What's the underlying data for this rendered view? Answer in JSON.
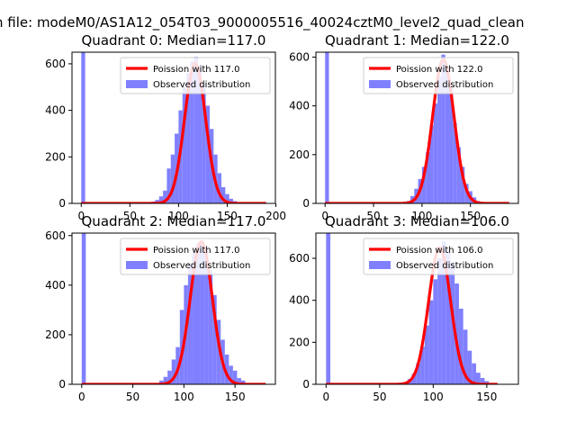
{
  "figure": {
    "suptitle": "n file: modeM0/AS1A12_054T03_9000005516_40024cztM0_level2_quad_clean"
  },
  "colors": {
    "hist": "#8080ff",
    "poisson": "#ff0000",
    "axis": "#000000",
    "legend_border": "#cccccc"
  },
  "chart_data": [
    {
      "type": "bar",
      "title": "Quadrant 0: Median=117.0",
      "xlim": [
        -9.5,
        199.5
      ],
      "ylim": [
        0,
        650
      ],
      "xticks": [
        0,
        50,
        100,
        150,
        200
      ],
      "xticklabels": [
        "0",
        "50",
        "100",
        "150",
        "200"
      ],
      "yticks": [
        0,
        200,
        400,
        600
      ],
      "yticklabels": [
        "0",
        "200",
        "400",
        "600"
      ],
      "legend": {
        "position": "upper right",
        "line_label": "Poission with 117.0",
        "hist_label": "Observed distribution"
      },
      "mean": 117.0,
      "peak": 602,
      "poisson_xrange": [
        0,
        190
      ],
      "zero_bin": {
        "x": 0,
        "height": 650
      },
      "bin_width": 4,
      "bins": [
        [
          72,
          8
        ],
        [
          76,
          15
        ],
        [
          80,
          30
        ],
        [
          84,
          55
        ],
        [
          88,
          150
        ],
        [
          92,
          210
        ],
        [
          96,
          300
        ],
        [
          100,
          400
        ],
        [
          104,
          500
        ],
        [
          108,
          560
        ],
        [
          112,
          610
        ],
        [
          116,
          630
        ],
        [
          120,
          590
        ],
        [
          124,
          520
        ],
        [
          128,
          420
        ],
        [
          132,
          320
        ],
        [
          136,
          210
        ],
        [
          140,
          130
        ],
        [
          144,
          70
        ],
        [
          148,
          40
        ],
        [
          152,
          20
        ],
        [
          156,
          10
        ],
        [
          160,
          5
        ]
      ]
    },
    {
      "type": "bar",
      "title": "Quadrant 1: Median=122.0",
      "xlim": [
        -9.5,
        199.5
      ],
      "ylim": [
        0,
        620
      ],
      "xticks": [
        0,
        50,
        100,
        150
      ],
      "xticklabels": [
        "0",
        "50",
        "100",
        "150"
      ],
      "yticks": [
        0,
        200,
        400,
        600
      ],
      "yticklabels": [
        "0",
        "200",
        "400",
        "600"
      ],
      "legend": {
        "position": "upper right",
        "line_label": "Poission with 122.0",
        "hist_label": "Observed distribution"
      },
      "mean": 122.0,
      "peak": 590,
      "poisson_xrange": [
        0,
        190
      ],
      "zero_bin": {
        "x": 0,
        "height": 620
      },
      "bin_width": 4,
      "bins": [
        [
          80,
          5
        ],
        [
          84,
          10
        ],
        [
          88,
          30
        ],
        [
          92,
          60
        ],
        [
          96,
          100
        ],
        [
          100,
          150
        ],
        [
          104,
          210
        ],
        [
          108,
          320
        ],
        [
          112,
          410
        ],
        [
          116,
          520
        ],
        [
          120,
          610
        ],
        [
          124,
          550
        ],
        [
          128,
          460
        ],
        [
          132,
          330
        ],
        [
          136,
          230
        ],
        [
          140,
          150
        ],
        [
          144,
          80
        ],
        [
          148,
          50
        ],
        [
          152,
          25
        ],
        [
          156,
          10
        ],
        [
          160,
          5
        ]
      ]
    },
    {
      "type": "bar",
      "title": "Quadrant 2: Median=117.0",
      "xlim": [
        -9.5,
        189.5
      ],
      "ylim": [
        0,
        610
      ],
      "xticks": [
        0,
        50,
        100,
        150
      ],
      "xticklabels": [
        "0",
        "50",
        "100",
        "150"
      ],
      "yticks": [
        0,
        200,
        400,
        600
      ],
      "yticklabels": [
        "0",
        "200",
        "400",
        "600"
      ],
      "legend": {
        "position": "upper right",
        "line_label": "Poission with 117.0",
        "hist_label": "Observed distribution"
      },
      "mean": 117.0,
      "peak": 575,
      "poisson_xrange": [
        0,
        180
      ],
      "zero_bin": {
        "x": 0,
        "height": 610
      },
      "bin_width": 4,
      "bins": [
        [
          72,
          5
        ],
        [
          76,
          15
        ],
        [
          80,
          30
        ],
        [
          84,
          55
        ],
        [
          88,
          100
        ],
        [
          92,
          150
        ],
        [
          96,
          300
        ],
        [
          100,
          400
        ],
        [
          104,
          490
        ],
        [
          108,
          530
        ],
        [
          112,
          570
        ],
        [
          116,
          580
        ],
        [
          120,
          540
        ],
        [
          124,
          460
        ],
        [
          128,
          360
        ],
        [
          132,
          260
        ],
        [
          136,
          180
        ],
        [
          140,
          120
        ],
        [
          144,
          75
        ],
        [
          148,
          55
        ],
        [
          152,
          25
        ],
        [
          156,
          15
        ],
        [
          160,
          5
        ]
      ]
    },
    {
      "type": "bar",
      "title": "Quadrant 3: Median=106.0",
      "xlim": [
        -9.5,
        179.5
      ],
      "ylim": [
        0,
        720
      ],
      "xticks": [
        0,
        50,
        100,
        150
      ],
      "xticklabels": [
        "0",
        "50",
        "100",
        "150"
      ],
      "yticks": [
        0,
        200,
        400,
        600
      ],
      "yticklabels": [
        "0",
        "200",
        "400",
        "600"
      ],
      "legend": {
        "position": "upper right",
        "line_label": "Poission with 106.0",
        "hist_label": "Observed distribution"
      },
      "mean": 106.0,
      "peak": 650,
      "poisson_xrange": [
        0,
        160
      ],
      "zero_bin": {
        "x": 0,
        "height": 720
      },
      "bin_width": 4,
      "bins": [
        [
          68,
          5
        ],
        [
          72,
          10
        ],
        [
          76,
          25
        ],
        [
          80,
          50
        ],
        [
          84,
          100
        ],
        [
          88,
          180
        ],
        [
          92,
          280
        ],
        [
          96,
          400
        ],
        [
          100,
          500
        ],
        [
          104,
          600
        ],
        [
          108,
          680
        ],
        [
          112,
          640
        ],
        [
          116,
          580
        ],
        [
          120,
          480
        ],
        [
          124,
          360
        ],
        [
          128,
          260
        ],
        [
          132,
          160
        ],
        [
          136,
          100
        ],
        [
          140,
          55
        ],
        [
          144,
          30
        ],
        [
          148,
          15
        ],
        [
          152,
          5
        ]
      ]
    }
  ]
}
